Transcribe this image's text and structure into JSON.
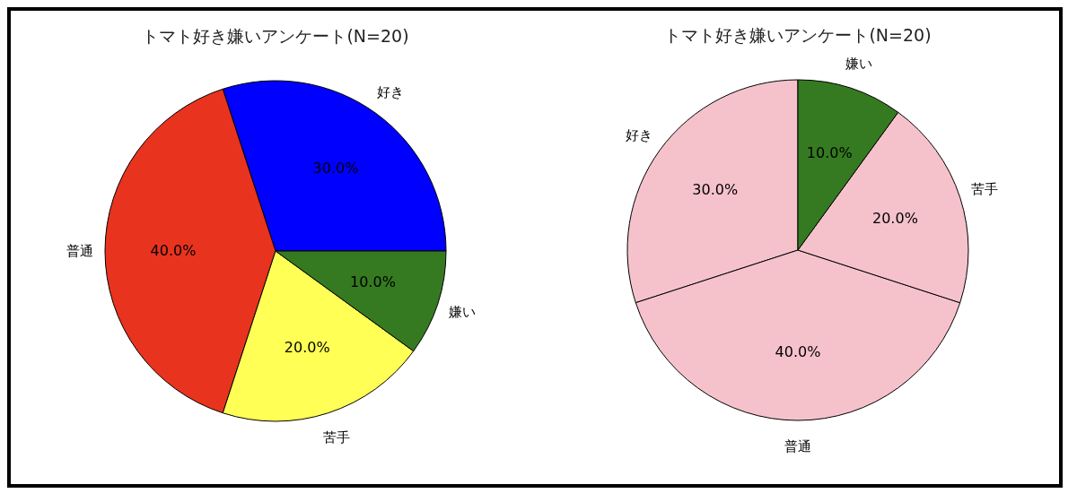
{
  "chart_data": [
    {
      "type": "pie",
      "title": "トマト好き嫌いアンケート(N=20)",
      "categories": [
        "好き",
        "普通",
        "苦手",
        "嫌い"
      ],
      "values": [
        30,
        40,
        20,
        10
      ],
      "colors": [
        "#0000ff",
        "#e8331f",
        "#ffff55",
        "#357a20"
      ],
      "value_labels": [
        "30.0%",
        "40.0%",
        "20.0%",
        "10.0%"
      ]
    },
    {
      "type": "pie",
      "title": "トマト好き嫌いアンケート(N=20)",
      "categories": [
        "好き",
        "普通",
        "苦手",
        "嫌い"
      ],
      "values": [
        30,
        40,
        20,
        10
      ],
      "colors": [
        "#f5c2cc",
        "#f5c2cc",
        "#f5c2cc",
        "#357a20"
      ],
      "value_labels": [
        "30.0%",
        "40.0%",
        "20.0%",
        "10.0%"
      ]
    }
  ]
}
